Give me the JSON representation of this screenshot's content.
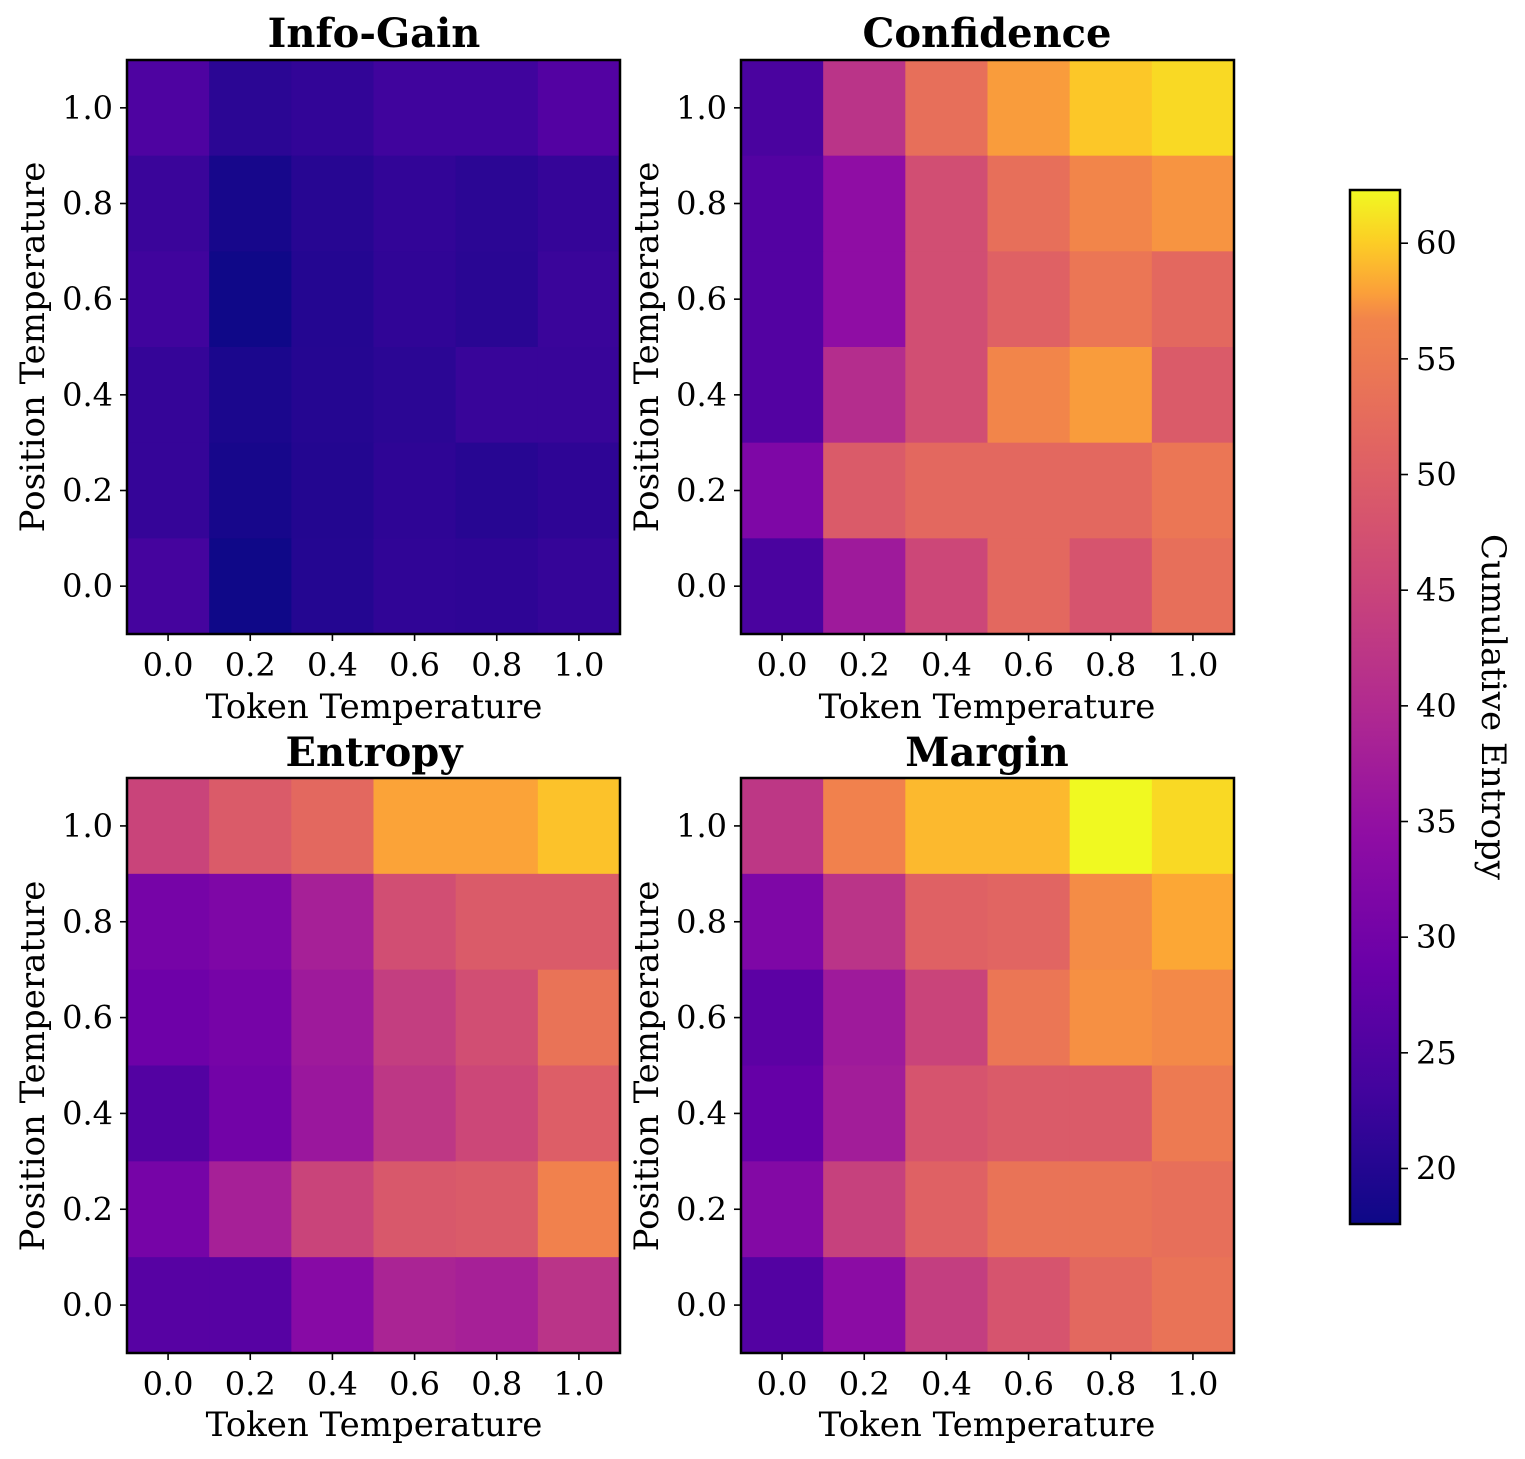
{
  "chart_data": {
    "type": "heatmap",
    "colormap": "plasma",
    "x_values": [
      0.0,
      0.2,
      0.4,
      0.6,
      0.8,
      1.0
    ],
    "y_values": [
      0.0,
      0.2,
      0.4,
      0.6,
      0.8,
      1.0
    ],
    "x_tick_labels": [
      "0.0",
      "0.2",
      "0.4",
      "0.6",
      "0.8",
      "1.0"
    ],
    "y_tick_labels": [
      "0.0",
      "0.2",
      "0.4",
      "0.6",
      "0.8",
      "1.0"
    ],
    "xlabel": "Token Temperature",
    "ylabel": "Position Temperature",
    "value_range": [
      17.6,
      62.3
    ],
    "panels": [
      {
        "title": "Info-Gain",
        "values_top_to_bottom": [
          [
            23.5,
            20.2,
            20.8,
            22.0,
            22.0,
            24.0
          ],
          [
            21.5,
            18.5,
            19.8,
            20.8,
            20.2,
            21.0
          ],
          [
            22.0,
            17.8,
            19.6,
            20.6,
            20.0,
            21.5
          ],
          [
            21.0,
            18.8,
            19.7,
            20.2,
            21.3,
            21.3
          ],
          [
            21.0,
            18.5,
            19.5,
            20.4,
            19.8,
            20.4
          ],
          [
            22.5,
            17.8,
            19.6,
            20.6,
            20.4,
            21.0
          ]
        ]
      },
      {
        "title": "Confidence",
        "values_top_to_bottom": [
          [
            23.0,
            37.0,
            46.0,
            52.0,
            57.0,
            59.0
          ],
          [
            24.0,
            31.0,
            41.0,
            46.0,
            49.0,
            51.0
          ],
          [
            24.0,
            31.0,
            41.0,
            44.0,
            47.0,
            45.0
          ],
          [
            24.0,
            36.0,
            41.0,
            49.0,
            52.0,
            43.0
          ],
          [
            29.0,
            43.0,
            45.0,
            45.0,
            45.0,
            47.0
          ],
          [
            23.0,
            33.0,
            40.0,
            45.0,
            42.0,
            46.0
          ]
        ]
      },
      {
        "title": "Entropy",
        "values_top_to_bottom": [
          [
            39.5,
            43.0,
            45.0,
            53.0,
            53.0,
            56.5
          ],
          [
            28.0,
            29.0,
            34.0,
            41.0,
            43.0,
            43.0
          ],
          [
            27.0,
            28.0,
            33.0,
            38.5,
            41.0,
            46.5
          ],
          [
            24.0,
            27.5,
            32.5,
            37.5,
            40.0,
            43.5
          ],
          [
            28.0,
            34.0,
            39.5,
            42.5,
            43.0,
            48.5
          ],
          [
            24.5,
            24.5,
            30.0,
            34.5,
            34.0,
            37.0
          ]
        ]
      },
      {
        "title": "Margin",
        "values_top_to_bottom": [
          [
            37.5,
            48.5,
            55.5,
            55.5,
            62.3,
            59.0
          ],
          [
            29.0,
            37.0,
            44.0,
            44.5,
            50.0,
            53.5
          ],
          [
            25.0,
            33.0,
            39.5,
            47.0,
            50.5,
            49.5
          ],
          [
            26.0,
            33.5,
            42.0,
            43.0,
            43.0,
            47.5
          ],
          [
            29.5,
            39.0,
            44.0,
            46.5,
            46.5,
            46.0
          ],
          [
            24.0,
            30.5,
            38.5,
            42.0,
            45.0,
            46.5
          ]
        ]
      }
    ],
    "colorbar": {
      "label": "Cumulative Entropy",
      "ticks": [
        20,
        25,
        30,
        35,
        40,
        45,
        50,
        55,
        60
      ],
      "tick_labels": [
        "20",
        "25",
        "30",
        "35",
        "40",
        "45",
        "50",
        "55",
        "60"
      ]
    }
  }
}
